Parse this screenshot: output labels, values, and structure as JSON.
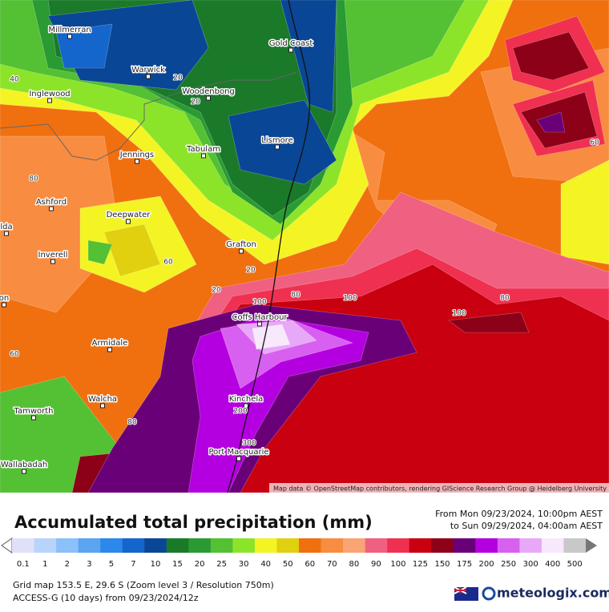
{
  "map": {
    "places": [
      "Gold Coast",
      "Millmerran",
      "Warwick",
      "Inglewood",
      "Woodenbong",
      "Lismore",
      "Tabulam",
      "Jennings",
      "Ashford",
      "Deepwater",
      "lda",
      "Inverell",
      "Grafton",
      "on",
      "Coffs Harbour",
      "Armidale",
      "Walcha",
      "Kinchela",
      "Tamworth",
      "Port Macquarie",
      "Wallabadah"
    ],
    "contour_labels": [
      "20",
      "40",
      "20",
      "20",
      "80",
      "60",
      "20",
      "80",
      "100",
      "100",
      "60",
      "80",
      "200",
      "300",
      "80",
      "100",
      "60"
    ],
    "attribution": "Map data © OpenStreetMap contributors, rendering GIScience Research Group @ Heidelberg University"
  },
  "legend": {
    "title": "Accumulated total precipitation (mm)",
    "from": "From Mon 09/23/2024, 10:00pm AEST",
    "to": "to Sun 09/29/2024, 04:00am AEST",
    "levels": [
      {
        "label": "0.1",
        "color": "#e0e0f8"
      },
      {
        "label": "1",
        "color": "#b8d4fa"
      },
      {
        "label": "2",
        "color": "#8cc0f8"
      },
      {
        "label": "3",
        "color": "#5aa4f2"
      },
      {
        "label": "5",
        "color": "#2c88ea"
      },
      {
        "label": "7",
        "color": "#1466cc"
      },
      {
        "label": "10",
        "color": "#0a4696"
      },
      {
        "label": "15",
        "color": "#1a7a2a"
      },
      {
        "label": "20",
        "color": "#2a9a32"
      },
      {
        "label": "25",
        "color": "#54c034"
      },
      {
        "label": "30",
        "color": "#8ce42a"
      },
      {
        "label": "40",
        "color": "#f4f424"
      },
      {
        "label": "50",
        "color": "#e0d010"
      },
      {
        "label": "60",
        "color": "#f07010"
      },
      {
        "label": "70",
        "color": "#f88c40"
      },
      {
        "label": "80",
        "color": "#f8a474"
      },
      {
        "label": "90",
        "color": "#f06080"
      },
      {
        "label": "100",
        "color": "#f03050"
      },
      {
        "label": "125",
        "color": "#c80010"
      },
      {
        "label": "150",
        "color": "#8c0018"
      },
      {
        "label": "175",
        "color": "#6a0078"
      },
      {
        "label": "200",
        "color": "#b400e0"
      },
      {
        "label": "250",
        "color": "#d860f0"
      },
      {
        "label": "300",
        "color": "#e8a8f8"
      },
      {
        "label": "400",
        "color": "#f8e8fc"
      },
      {
        "label": "500",
        "color": "#c8c8c8"
      }
    ]
  },
  "footer": {
    "grid": "Grid map 153.5 E, 29.6 S (Zoom level 3 / Resolution 750m)",
    "model": "ACCESS-G (10 days) from 09/23/2024/12z",
    "logo": "meteologix.com"
  }
}
